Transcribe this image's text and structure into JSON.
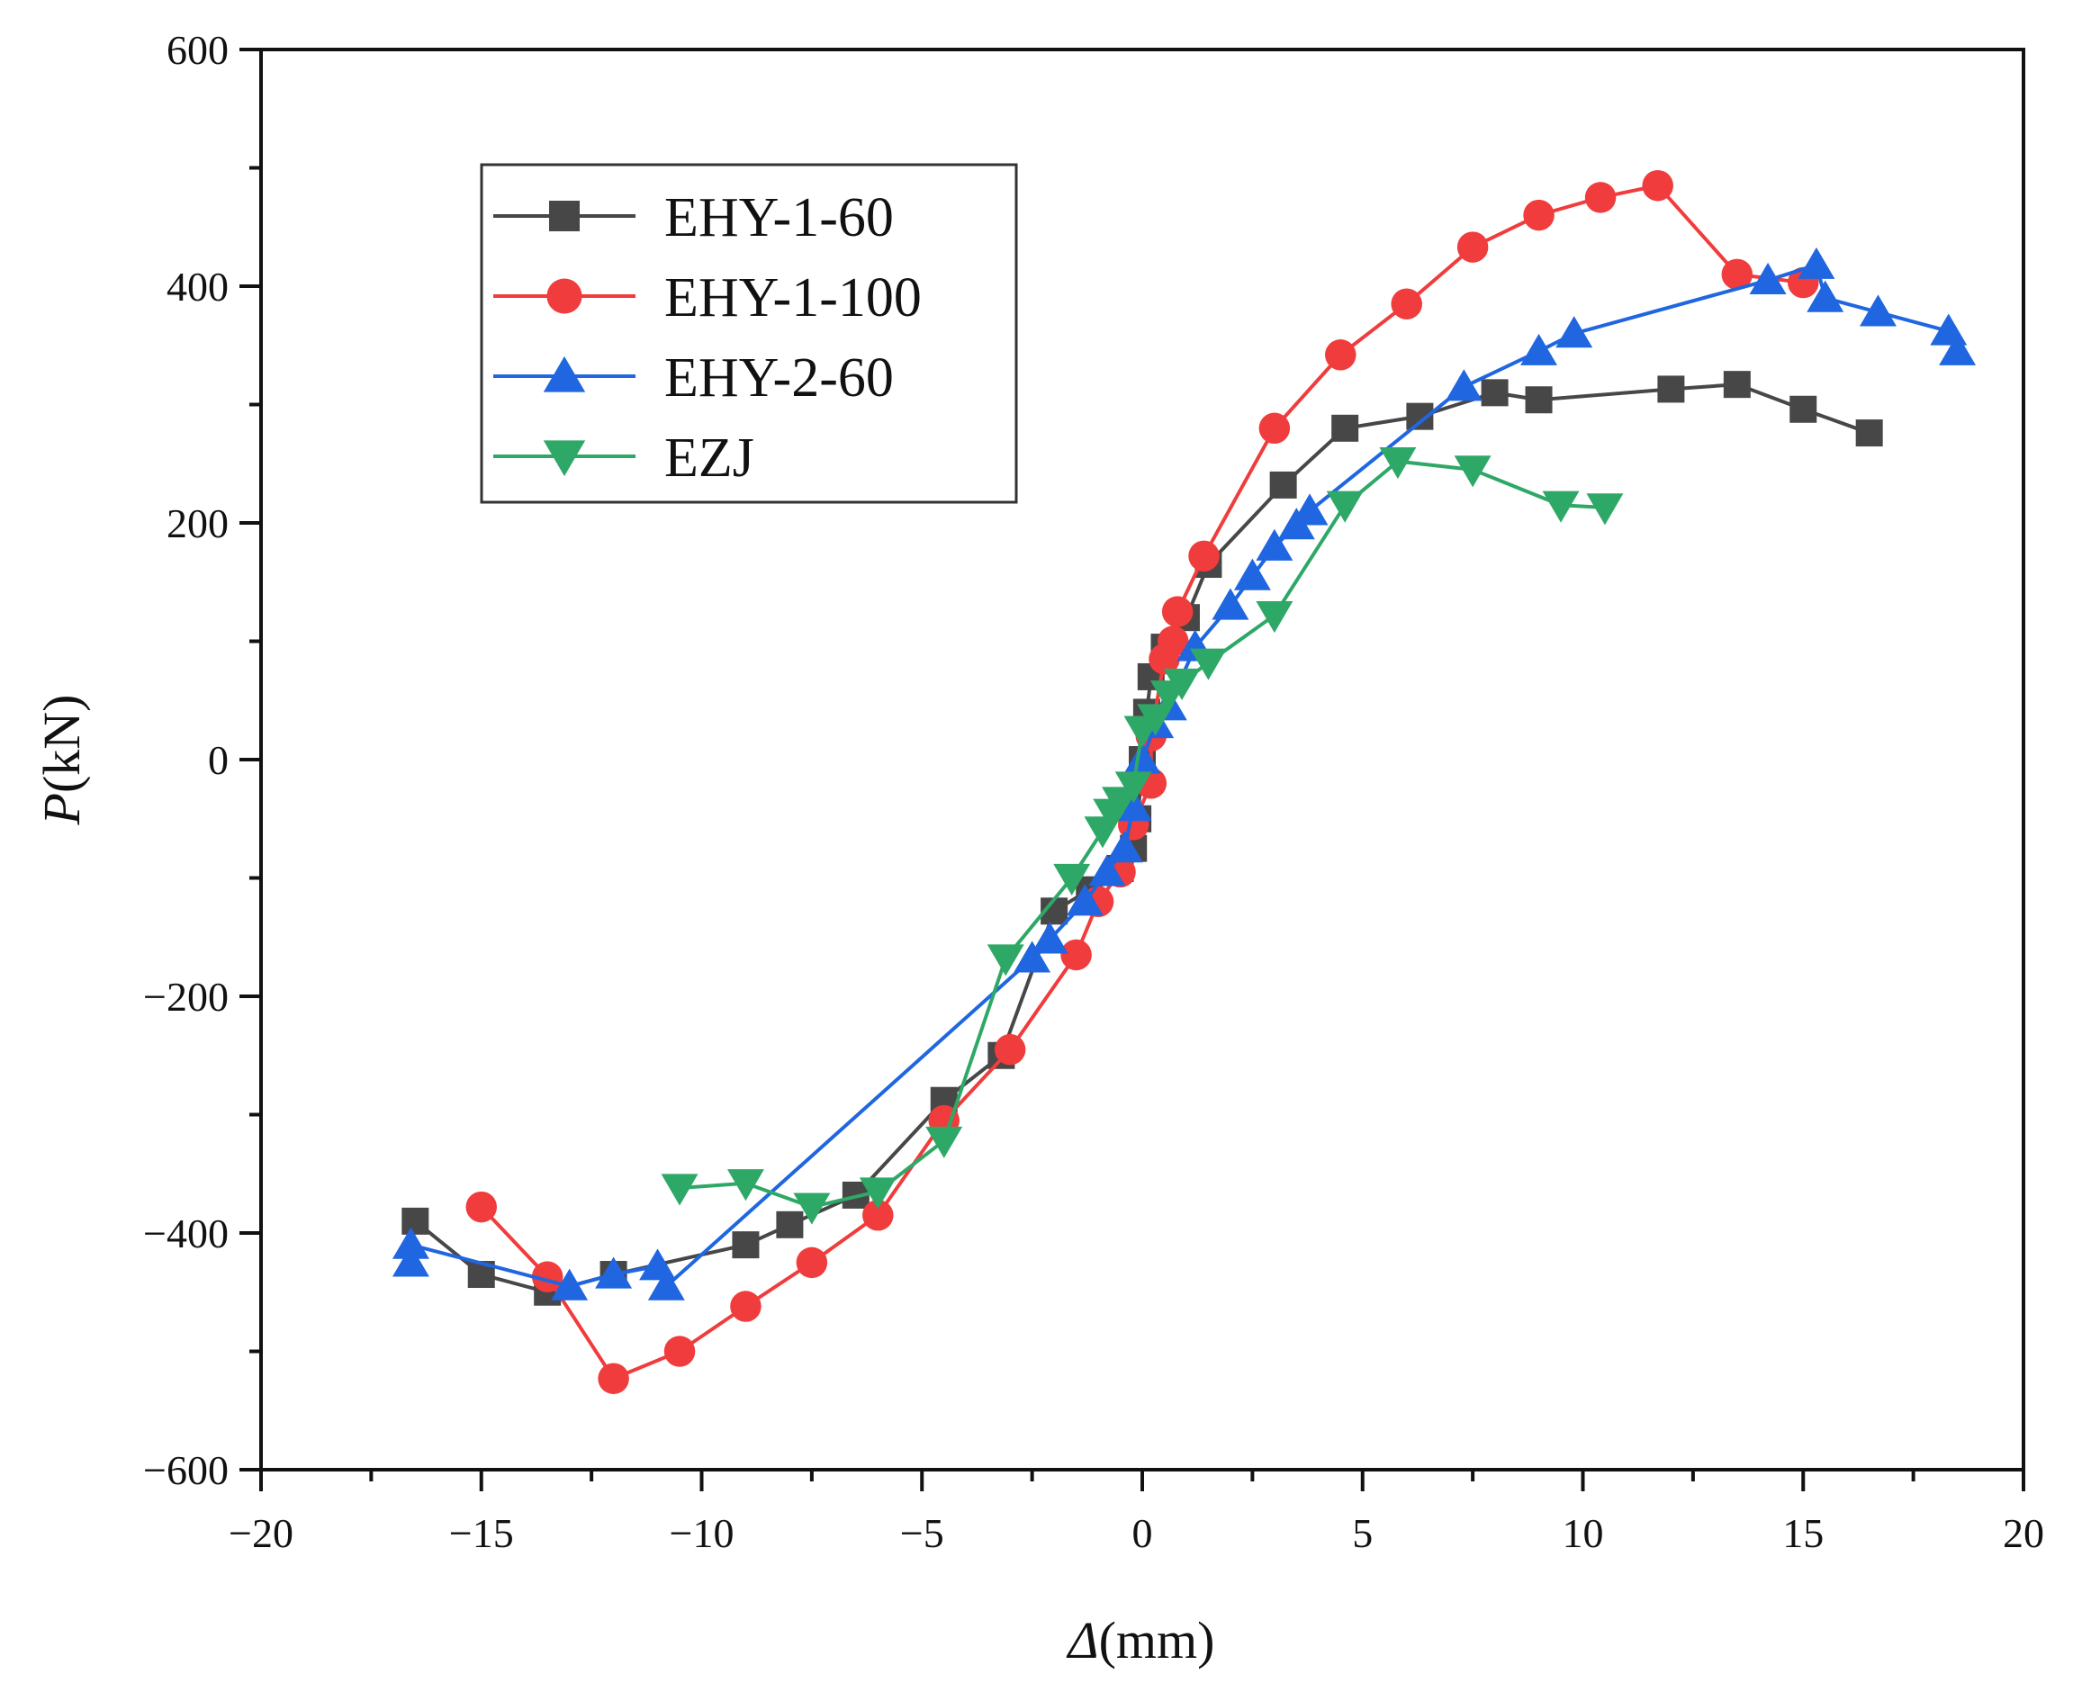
{
  "chart_data": {
    "type": "line",
    "title": "",
    "xlabel_symbol": "Δ",
    "xlabel_unit": "(mm)",
    "ylabel_symbol": "P",
    "ylabel_unit": "(kN)",
    "xlim": [
      -20,
      20
    ],
    "ylim": [
      -600,
      600
    ],
    "x_ticks": [
      -20,
      -15,
      -10,
      -5,
      0,
      5,
      10,
      15,
      20
    ],
    "y_ticks": [
      -600,
      -400,
      -200,
      0,
      200,
      400,
      600
    ],
    "grid": false,
    "legend_position": "top-left",
    "series": [
      {
        "name": "EHY-1-60",
        "color": "#474747",
        "marker": "square",
        "points": [
          [
            -16.5,
            -390
          ],
          [
            -15,
            -435
          ],
          [
            -13.5,
            -450
          ],
          [
            -12,
            -435
          ],
          [
            -9,
            -410
          ],
          [
            -8,
            -393
          ],
          [
            -6.5,
            -368
          ],
          [
            -4.5,
            -288
          ],
          [
            -3.2,
            -250
          ],
          [
            -2,
            -128
          ],
          [
            -1.2,
            -110
          ],
          [
            -0.5,
            -92
          ],
          [
            -0.2,
            -75
          ],
          [
            -0.1,
            -50
          ],
          [
            0,
            0
          ],
          [
            0.1,
            40
          ],
          [
            0.2,
            70
          ],
          [
            0.5,
            95
          ],
          [
            1,
            120
          ],
          [
            1.5,
            165
          ],
          [
            3.2,
            232
          ],
          [
            4.6,
            280
          ],
          [
            6.3,
            290
          ],
          [
            8,
            310
          ],
          [
            9,
            304
          ],
          [
            12,
            313
          ],
          [
            13.5,
            317
          ],
          [
            15,
            296
          ],
          [
            16.5,
            276
          ]
        ]
      },
      {
        "name": "EHY-1-100",
        "color": "#f03c3c",
        "marker": "circle",
        "points": [
          [
            -15,
            -378
          ],
          [
            -13.5,
            -437
          ],
          [
            -12,
            -523
          ],
          [
            -10.5,
            -500
          ],
          [
            -9,
            -462
          ],
          [
            -7.5,
            -425
          ],
          [
            -6,
            -385
          ],
          [
            -4.5,
            -305
          ],
          [
            -3,
            -245
          ],
          [
            -1.5,
            -165
          ],
          [
            -1,
            -120
          ],
          [
            -0.5,
            -95
          ],
          [
            -0.2,
            -55
          ],
          [
            0.2,
            -20
          ],
          [
            0.2,
            20
          ],
          [
            0.5,
            85
          ],
          [
            0.7,
            100
          ],
          [
            0.8,
            125
          ],
          [
            1.4,
            172
          ],
          [
            3,
            280
          ],
          [
            4.5,
            342
          ],
          [
            6,
            385
          ],
          [
            7.5,
            433
          ],
          [
            9,
            460
          ],
          [
            10.4,
            475
          ],
          [
            11.7,
            485
          ],
          [
            13.5,
            410
          ],
          [
            15,
            403
          ]
        ]
      },
      {
        "name": "EHY-2-60",
        "color": "#1f66e0",
        "marker": "triangle-up",
        "points": [
          [
            -16.6,
            -425
          ],
          [
            -16.6,
            -410
          ],
          [
            -13,
            -445
          ],
          [
            -12,
            -435
          ],
          [
            -11,
            -428
          ],
          [
            -10.8,
            -445
          ],
          [
            -2.5,
            -168
          ],
          [
            -2.1,
            -152
          ],
          [
            -1.3,
            -120
          ],
          [
            -0.8,
            -95
          ],
          [
            -0.4,
            -75
          ],
          [
            -0.2,
            -40
          ],
          [
            0,
            0
          ],
          [
            0.3,
            30
          ],
          [
            0.6,
            45
          ],
          [
            1.2,
            95
          ],
          [
            2,
            130
          ],
          [
            2.5,
            155
          ],
          [
            3,
            180
          ],
          [
            3.5,
            198
          ],
          [
            3.8,
            210
          ],
          [
            7.3,
            315
          ],
          [
            9,
            345
          ],
          [
            9.8,
            360
          ],
          [
            14.2,
            405
          ],
          [
            15.3,
            418
          ],
          [
            15.5,
            390
          ],
          [
            16.7,
            378
          ],
          [
            18.3,
            362
          ],
          [
            18.5,
            345
          ]
        ]
      },
      {
        "name": "EZJ",
        "color": "#2ea866",
        "marker": "triangle-down",
        "points": [
          [
            -10.5,
            -362
          ],
          [
            -9,
            -358
          ],
          [
            -7.5,
            -378
          ],
          [
            -6,
            -365
          ],
          [
            -4.5,
            -322
          ],
          [
            -3.1,
            -168
          ],
          [
            -1.6,
            -100
          ],
          [
            -0.9,
            -60
          ],
          [
            -0.7,
            -45
          ],
          [
            -0.5,
            -35
          ],
          [
            -0.2,
            -22
          ],
          [
            0,
            25
          ],
          [
            0.3,
            35
          ],
          [
            0.6,
            55
          ],
          [
            0.9,
            65
          ],
          [
            1.5,
            82
          ],
          [
            3,
            122
          ],
          [
            4.6,
            215
          ],
          [
            5.8,
            252
          ],
          [
            7.5,
            245
          ],
          [
            9.5,
            215
          ],
          [
            10.5,
            213
          ]
        ]
      }
    ]
  }
}
